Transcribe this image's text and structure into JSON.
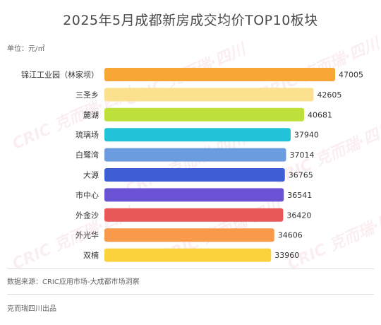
{
  "chart_data": {
    "type": "bar",
    "orientation": "horizontal",
    "title": "2025年5月成都新房成交均价TOP10板块",
    "unit_label": "单位：元/㎡",
    "categories": [
      "锦江工业园（林家坝）",
      "三圣乡",
      "麓湖",
      "琉璃场",
      "白鹭湾",
      "大源",
      "市中心",
      "外金沙",
      "外光华",
      "双楠"
    ],
    "values": [
      47005,
      42605,
      40681,
      37940,
      37014,
      36765,
      36541,
      36420,
      34606,
      33960
    ],
    "colors": [
      "#f7a535",
      "#fbe08d",
      "#bde03a",
      "#22c2d8",
      "#6c9ce0",
      "#3e5ed6",
      "#6a52d4",
      "#e85858",
      "#f89a4a",
      "#fcd23a"
    ],
    "xlim": [
      0,
      47005
    ],
    "grid": false,
    "legend": "none"
  },
  "source": "数据来源：CRIC应用市场-大成都市场洞察",
  "footer": "克而瑞四川出品",
  "watermark": "CRIC 克而瑞·四川"
}
